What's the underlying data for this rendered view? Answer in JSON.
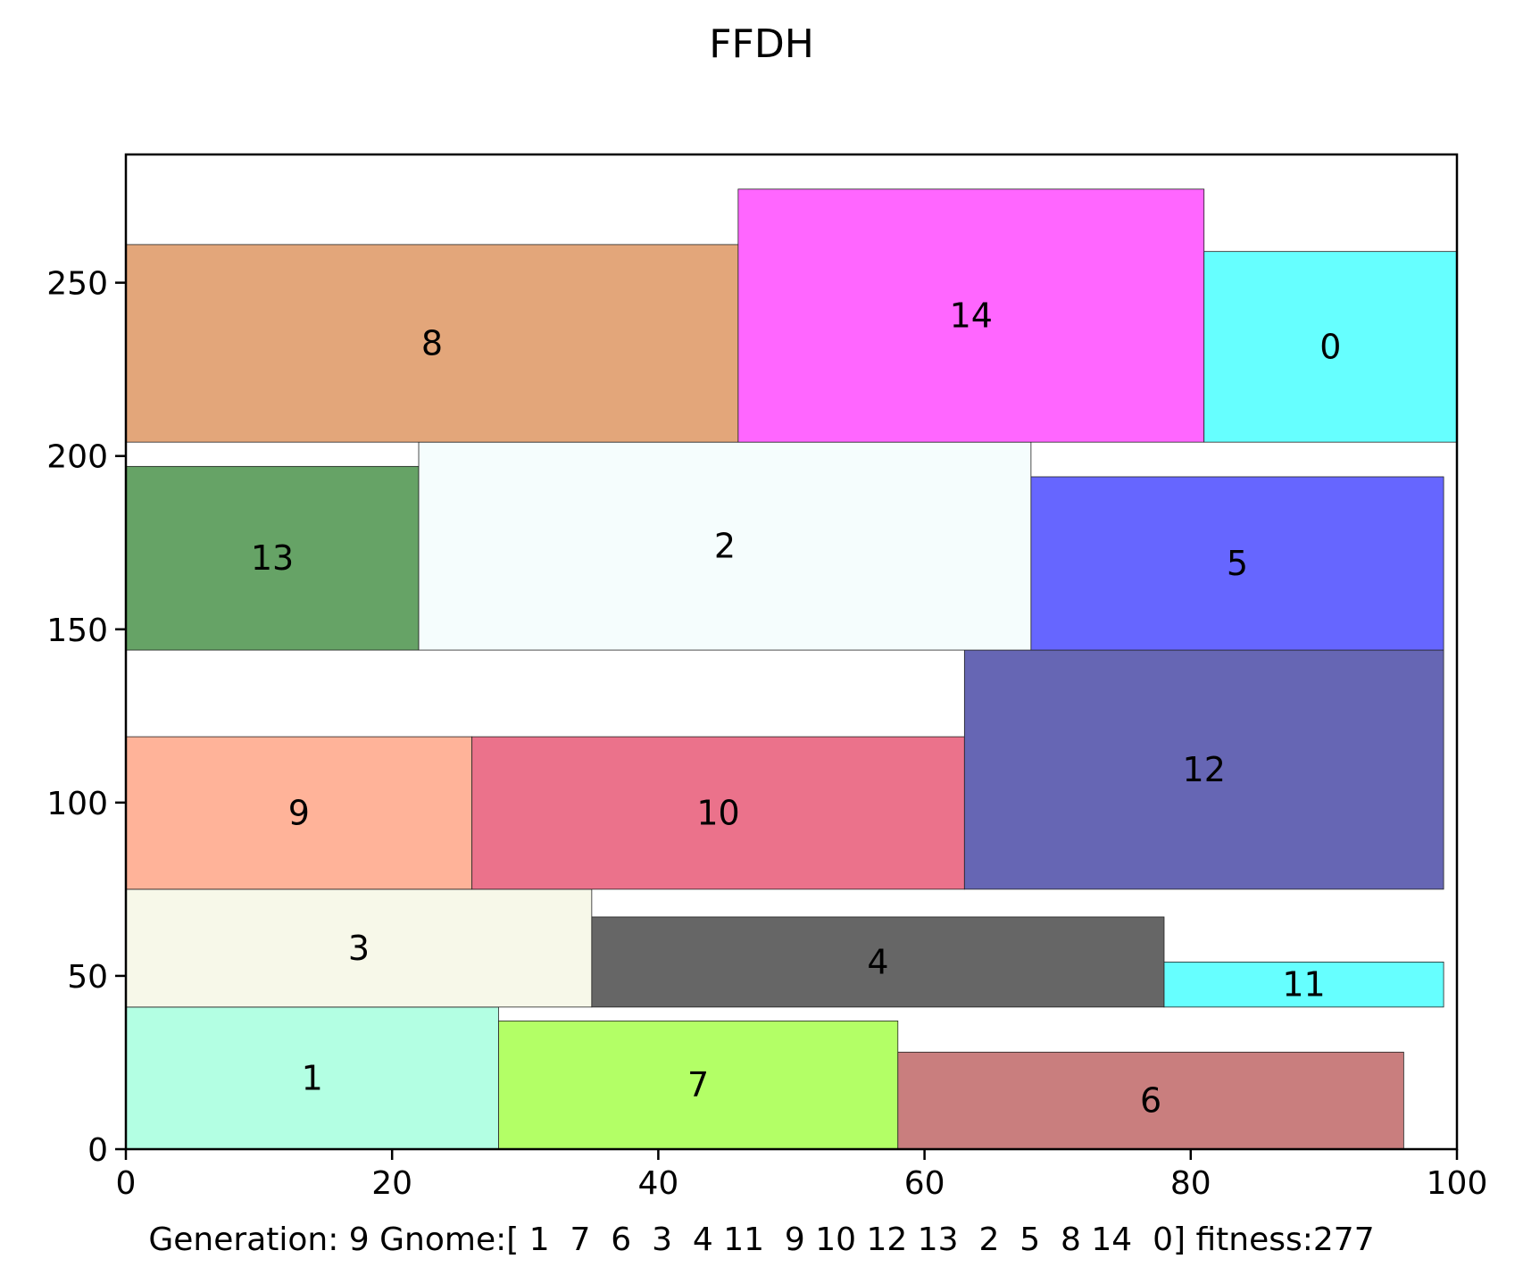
{
  "chart_data": {
    "type": "rectangle-packing",
    "title": "FFDH",
    "footer": "Generation: 9 Gnome:[ 1  7  6  3  4 11  9 10 12 13  2  5  8 14  0] fitness:277",
    "xlim": [
      0,
      100
    ],
    "ylim": [
      0,
      287
    ],
    "x_ticks": [
      0,
      20,
      40,
      60,
      80,
      100
    ],
    "y_ticks": [
      0,
      50,
      100,
      150,
      200,
      250
    ],
    "grid": false,
    "rectangles": [
      {
        "id": "1",
        "x": 0,
        "y": 0,
        "w": 28,
        "h": 41,
        "color": "#b3ffe3"
      },
      {
        "id": "7",
        "x": 28,
        "y": 0,
        "w": 30,
        "h": 37,
        "color": "#b3ff66"
      },
      {
        "id": "6",
        "x": 58,
        "y": 0,
        "w": 38,
        "h": 28,
        "color": "#c97e7e"
      },
      {
        "id": "3",
        "x": 0,
        "y": 41,
        "w": 35,
        "h": 34,
        "color": "#f7f8e9"
      },
      {
        "id": "4",
        "x": 35,
        "y": 41,
        "w": 43,
        "h": 26,
        "color": "#666666"
      },
      {
        "id": "11",
        "x": 78,
        "y": 41,
        "w": 21,
        "h": 13,
        "color": "#66ffff"
      },
      {
        "id": "9",
        "x": 0,
        "y": 75,
        "w": 26,
        "h": 44,
        "color": "#ffb399"
      },
      {
        "id": "10",
        "x": 26,
        "y": 75,
        "w": 37,
        "h": 44,
        "color": "#eb728b"
      },
      {
        "id": "12",
        "x": 63,
        "y": 75,
        "w": 36,
        "h": 69,
        "color": "#6666b4"
      },
      {
        "id": "13",
        "x": 0,
        "y": 144,
        "w": 22,
        "h": 53,
        "color": "#66a366"
      },
      {
        "id": "2",
        "x": 22,
        "y": 144,
        "w": 46,
        "h": 60,
        "color": "#f5fdfd"
      },
      {
        "id": "5",
        "x": 68,
        "y": 144,
        "w": 31,
        "h": 50,
        "color": "#6666ff"
      },
      {
        "id": "8",
        "x": 0,
        "y": 204,
        "w": 46,
        "h": 57,
        "color": "#e3a67a"
      },
      {
        "id": "14",
        "x": 46,
        "y": 204,
        "w": 35,
        "h": 73,
        "color": "#ff66ff"
      },
      {
        "id": "0",
        "x": 81,
        "y": 204,
        "w": 19,
        "h": 55,
        "color": "#66ffff"
      }
    ]
  }
}
